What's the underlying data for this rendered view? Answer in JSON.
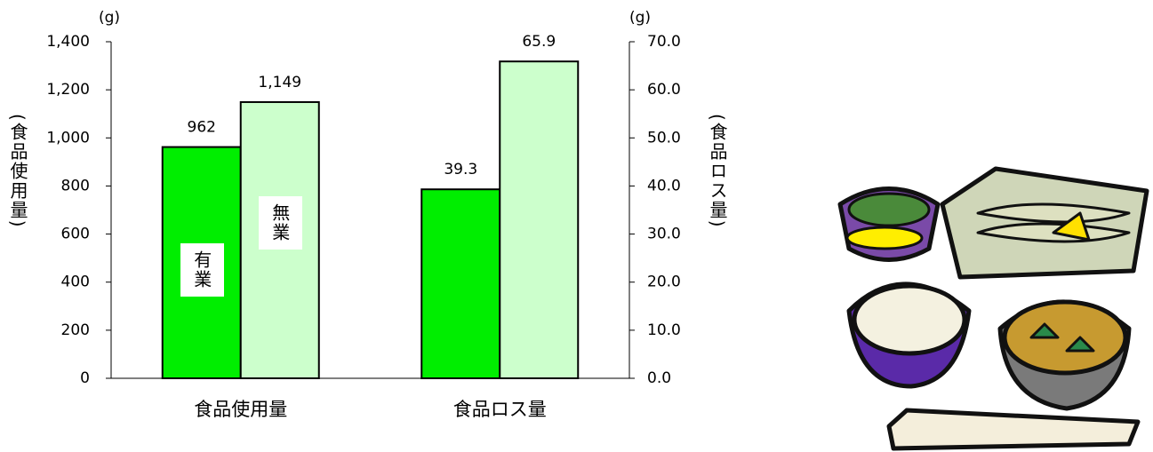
{
  "chart_data": {
    "type": "bar",
    "categories": [
      "食品使用量",
      "食品ロス量"
    ],
    "category_axes": [
      "y",
      "y2"
    ],
    "series": [
      {
        "name": "有業",
        "color": "#00ee00",
        "values": [
          962,
          39.3
        ]
      },
      {
        "name": "無業",
        "color": "#ccffcc",
        "values": [
          1149,
          65.9
        ],
        "value_labels": [
          "1,149",
          "65.9"
        ]
      }
    ],
    "y_label": "(食品使用量)",
    "y_unit": "(g)",
    "y2_label": "(食品ロス量)",
    "y2_unit": "(g)",
    "ylim": [
      0,
      1400
    ],
    "yticks": [
      0,
      200,
      400,
      600,
      800,
      {
        "value": 1000,
        "label": "1,000"
      },
      {
        "value": 1200,
        "label": "1,200"
      },
      {
        "value": 1400,
        "label": "1,400"
      }
    ],
    "y2lim": [
      0,
      70
    ],
    "y2ticks": [
      {
        "value": 0,
        "label": "0.0"
      },
      {
        "value": 10,
        "label": "10.0"
      },
      {
        "value": 20,
        "label": "20.0"
      },
      {
        "value": 30,
        "label": "30.0"
      },
      {
        "value": 40,
        "label": "40.0"
      },
      {
        "value": 50,
        "label": "50.0"
      },
      {
        "value": 60,
        "label": "60.0"
      },
      {
        "value": 70,
        "label": "70.0"
      }
    ]
  }
}
